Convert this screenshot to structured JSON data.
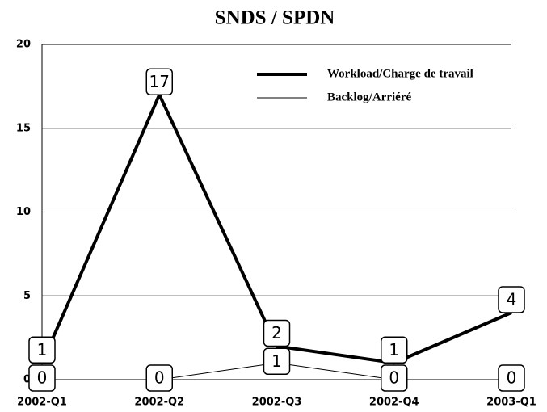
{
  "chart_data": {
    "type": "line",
    "title": "SNDS / SPDN",
    "categories": [
      "2002-Q1",
      "2002-Q2",
      "2002-Q3",
      "2002-Q4",
      "2003-Q1"
    ],
    "series": [
      {
        "name": "Workload/Charge de travail",
        "color": "#000000",
        "values": [
          1,
          17,
          2,
          1,
          4
        ]
      },
      {
        "name": "Backlog/Arriéré",
        "color": "#000000",
        "values": [
          0,
          0,
          1,
          0,
          0
        ]
      }
    ],
    "ylim": [
      0,
      20
    ],
    "yticks": [
      0,
      5,
      10,
      15,
      20
    ],
    "grid": true,
    "legend": "top-right"
  }
}
